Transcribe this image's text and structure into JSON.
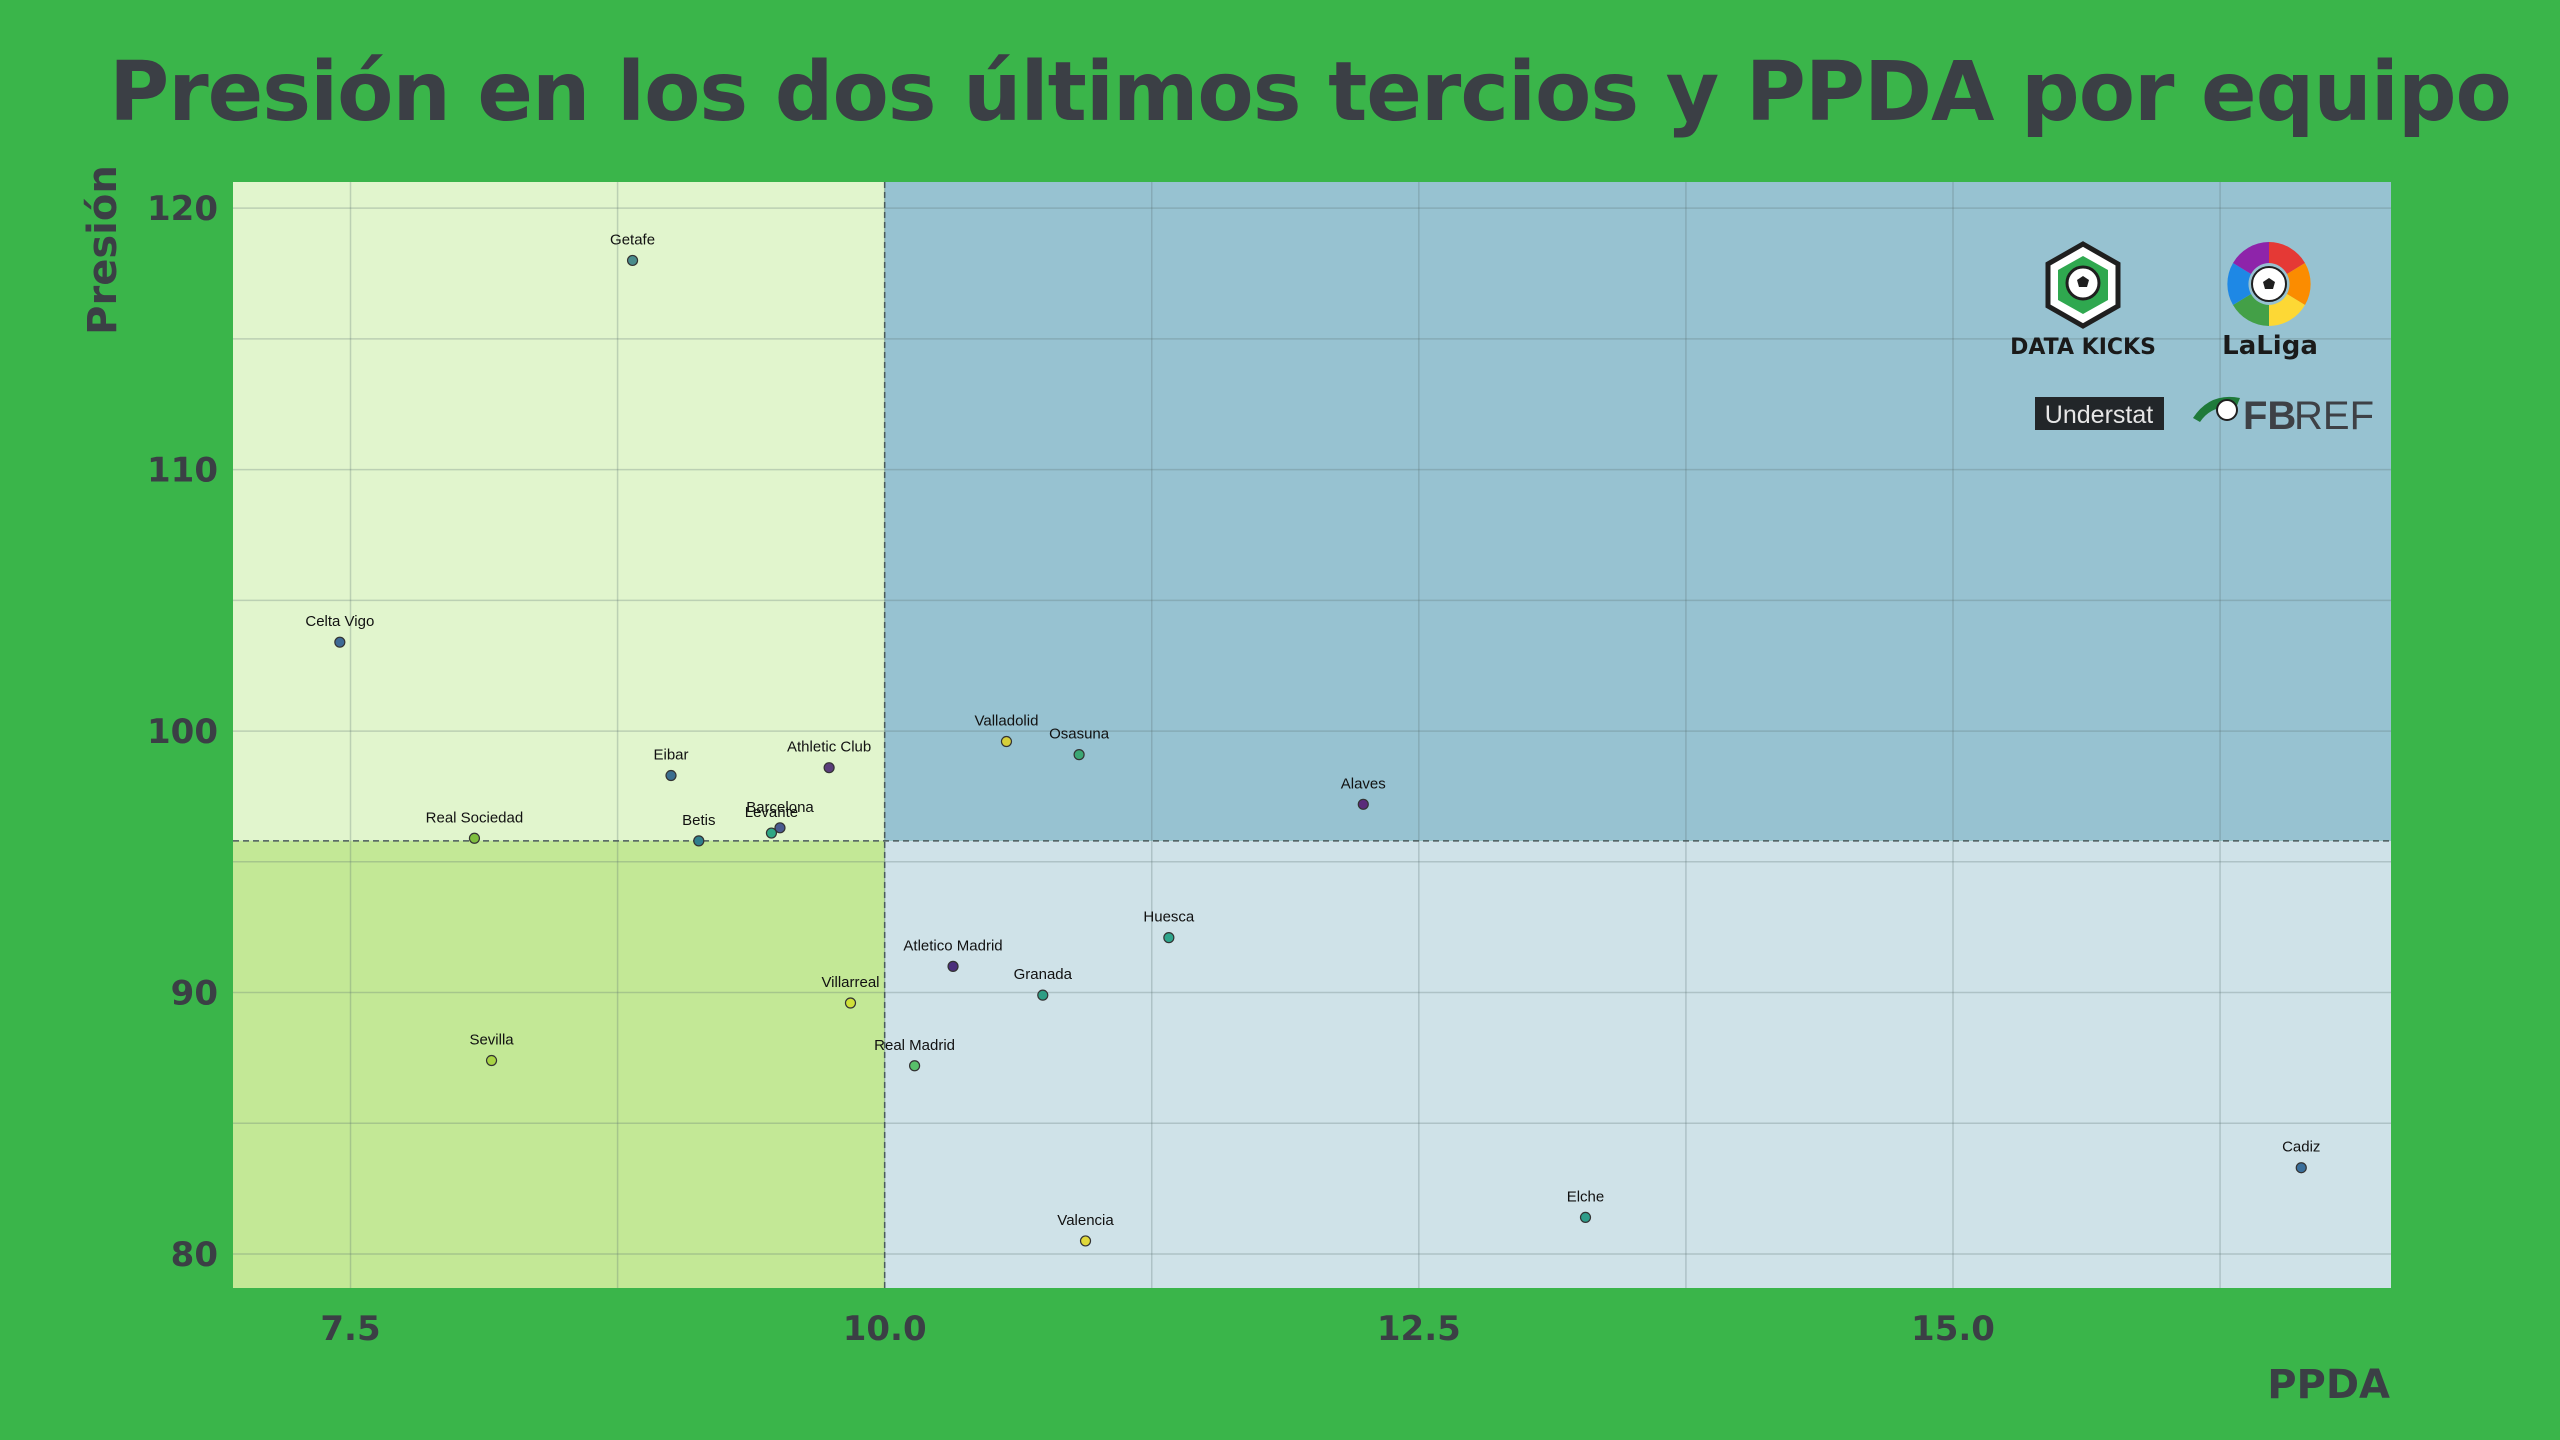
{
  "chart_data": {
    "type": "scatter",
    "title": "Presión en los dos últimos tercios y PPDA por equipo",
    "xlabel": "PPDA",
    "ylabel": "Presión",
    "xlim": [
      6.95,
      17.05
    ],
    "ylim": [
      78.7,
      121
    ],
    "xticks": [
      "7.5",
      "10.0",
      "12.5",
      "15.0"
    ],
    "xtick_values": [
      7.5,
      10.0,
      12.5,
      15.0
    ],
    "yticks": [
      "80",
      "90",
      "100",
      "110",
      "120"
    ],
    "ytick_values": [
      80,
      90,
      100,
      110,
      120
    ],
    "x_divider": 10.0,
    "y_divider": 95.8,
    "grid": true,
    "quadrant_colors": {
      "top_left": "#e1f5cd",
      "top_right": "#97c2d1",
      "bottom_left": "#c3e896",
      "bottom_right": "#cfe2e8"
    },
    "points": [
      {
        "team": "Getafe",
        "x": 8.82,
        "y": 118.0,
        "color": "#4a8c8c"
      },
      {
        "team": "Celta Vigo",
        "x": 7.45,
        "y": 103.4,
        "color": "#3e6a95"
      },
      {
        "team": "Eibar",
        "x": 9.0,
        "y": 98.3,
        "color": "#3b6e8f"
      },
      {
        "team": "Athletic Club",
        "x": 9.74,
        "y": 98.6,
        "color": "#5a3d7a"
      },
      {
        "team": "Real Sociedad",
        "x": 8.08,
        "y": 95.9,
        "color": "#7fbf3f"
      },
      {
        "team": "Betis",
        "x": 9.13,
        "y": 95.8,
        "color": "#2f7e8c"
      },
      {
        "team": "Barcelona",
        "x": 9.51,
        "y": 96.3,
        "color": "#4a5a8f"
      },
      {
        "team": "Levante",
        "x": 9.47,
        "y": 96.1,
        "color": "#2fa784"
      },
      {
        "team": "Valladolid",
        "x": 10.57,
        "y": 99.6,
        "color": "#d6cf3a"
      },
      {
        "team": "Osasuna",
        "x": 10.91,
        "y": 99.1,
        "color": "#3ba774"
      },
      {
        "team": "Alaves",
        "x": 12.24,
        "y": 97.2,
        "color": "#5a2a7a"
      },
      {
        "team": "Huesca",
        "x": 11.33,
        "y": 92.1,
        "color": "#2fa58c"
      },
      {
        "team": "Atletico Madrid",
        "x": 10.32,
        "y": 91.0,
        "color": "#4b2f7c"
      },
      {
        "team": "Granada",
        "x": 10.74,
        "y": 89.9,
        "color": "#2f9d84"
      },
      {
        "team": "Villarreal",
        "x": 9.84,
        "y": 89.6,
        "color": "#cfe03a"
      },
      {
        "team": "Real Madrid",
        "x": 10.14,
        "y": 87.2,
        "color": "#58c06a"
      },
      {
        "team": "Sevilla",
        "x": 8.16,
        "y": 87.4,
        "color": "#a8d444"
      },
      {
        "team": "Valencia",
        "x": 10.94,
        "y": 80.5,
        "color": "#e0d83a"
      },
      {
        "team": "Elche",
        "x": 13.28,
        "y": 81.4,
        "color": "#2f9d8a"
      },
      {
        "team": "Cadiz",
        "x": 16.63,
        "y": 83.3,
        "color": "#3a6e9a"
      }
    ]
  },
  "logos": {
    "datakicks": "DATA KICKS",
    "laliga": "LaLiga",
    "understat": "Understat",
    "fbref_fb": "FB",
    "fbref_ref": "REF"
  }
}
